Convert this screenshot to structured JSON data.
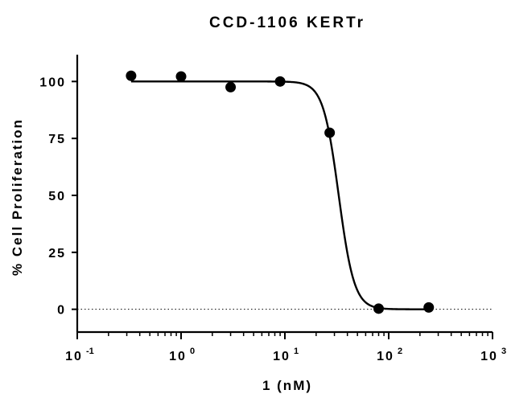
{
  "chart_data": {
    "type": "scatter",
    "title": "CCD-1106 KERTr",
    "xlabel": "1 (nM)",
    "ylabel": "% Cell Proliferation",
    "x_scale": "log",
    "xlim": [
      0.1,
      1000
    ],
    "ylim": [
      -10,
      110
    ],
    "x_ticks": [
      {
        "base": "10",
        "exp": "-1",
        "value": 0.1
      },
      {
        "base": "10",
        "exp": "0",
        "value": 1
      },
      {
        "base": "10",
        "exp": "1",
        "value": 10
      },
      {
        "base": "10",
        "exp": "2",
        "value": 100
      },
      {
        "base": "10",
        "exp": "3",
        "value": 1000
      }
    ],
    "y_ticks": [
      "0",
      "25",
      "50",
      "75",
      "100"
    ],
    "reference_line": {
      "y": 0,
      "style": "dotted"
    },
    "series": [
      {
        "points": [
          {
            "x": 0.33,
            "y": 102.5
          },
          {
            "x": 1.0,
            "y": 102.2
          },
          {
            "x": 3.0,
            "y": 97.5
          },
          {
            "x": 9.0,
            "y": 100.0
          },
          {
            "x": 27.0,
            "y": 77.5
          },
          {
            "x": 80.0,
            "y": 0.3
          },
          {
            "x": 243.0,
            "y": 0.8
          }
        ],
        "fit": {
          "model": "4PL",
          "top": 100,
          "bottom": 0,
          "ic50": 33,
          "hill": 5.8
        }
      }
    ],
    "colors": {
      "marker": "#000000",
      "line": "#000000"
    }
  }
}
